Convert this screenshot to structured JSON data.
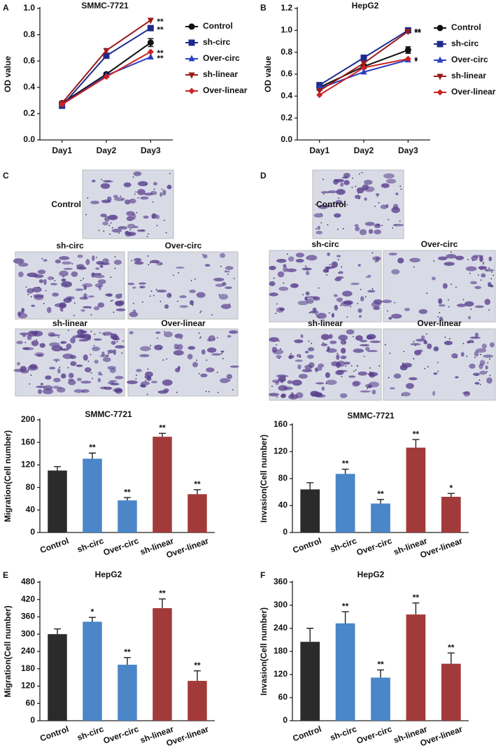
{
  "micrographs": [
    {
      "panel": "C",
      "labels": [
        "Control",
        "sh-circ",
        "Over-circ",
        "sh-linear",
        "Over-linear"
      ]
    },
    {
      "panel": "D",
      "labels": [
        "Control",
        "sh-circ",
        "Over-circ",
        "sh-linear",
        "Over-linear"
      ]
    }
  ],
  "chart_data": [
    {
      "type": "line",
      "panel": "A",
      "title": "SMMC-7721",
      "y_label": "OD value",
      "categories": [
        "Day1",
        "Day2",
        "Day3"
      ],
      "ylim": [
        0,
        1.0
      ],
      "yticks": [
        {
          "value": 0,
          "label": "0.0"
        },
        0.2,
        0.4,
        0.6,
        0.8,
        {
          "value": 1.0,
          "label": "1.0"
        }
      ],
      "legend": "right",
      "series": [
        {
          "name": "Control",
          "color": "#111111",
          "marker": "circle",
          "values": [
            0.28,
            0.5,
            0.74
          ],
          "errors": [
            0.01,
            0.01,
            0.03
          ]
        },
        {
          "name": "sh-circ",
          "color": "#1f2a8c",
          "marker": "square",
          "values": [
            0.26,
            0.64,
            0.85
          ],
          "significance": [
            null,
            null,
            "**"
          ]
        },
        {
          "name": "Over-circ",
          "color": "#2a3fc4",
          "marker": "triangle-up",
          "values": [
            0.27,
            0.49,
            0.63
          ],
          "significance": [
            null,
            null,
            "**"
          ]
        },
        {
          "name": "sh-linear",
          "color": "#9a1a1a",
          "marker": "triangle-down",
          "values": [
            0.28,
            0.68,
            0.91
          ],
          "significance": [
            null,
            null,
            "**"
          ]
        },
        {
          "name": "Over-linear",
          "color": "#cc2222",
          "marker": "diamond",
          "values": [
            0.27,
            0.48,
            0.67
          ],
          "significance": [
            null,
            null,
            "**"
          ]
        }
      ]
    },
    {
      "type": "line",
      "panel": "B",
      "title": "HepG2",
      "y_label": "OD value",
      "categories": [
        "Day1",
        "Day2",
        "Day3"
      ],
      "ylim": [
        0,
        1.2
      ],
      "yticks": [
        {
          "value": 0,
          "label": "0.0"
        },
        0.2,
        0.4,
        0.6,
        0.8,
        {
          "value": 1.0,
          "label": "1.0"
        },
        1.2
      ],
      "legend": "right",
      "series": [
        {
          "name": "Control",
          "color": "#111111",
          "marker": "circle",
          "values": [
            0.48,
            0.67,
            0.82
          ],
          "errors": [
            0.02,
            0.02,
            0.03
          ]
        },
        {
          "name": "sh-circ",
          "color": "#1f2a8c",
          "marker": "square",
          "values": [
            0.5,
            0.75,
            1.0
          ],
          "significance": [
            null,
            null,
            "**"
          ]
        },
        {
          "name": "Over-circ",
          "color": "#2a3fc4",
          "marker": "triangle-up",
          "values": [
            0.47,
            0.62,
            0.73
          ],
          "significance": [
            null,
            null,
            "*"
          ]
        },
        {
          "name": "sh-linear",
          "color": "#9a1a1a",
          "marker": "triangle-down",
          "values": [
            0.45,
            0.7,
            0.99
          ],
          "significance": [
            null,
            null,
            "**"
          ]
        },
        {
          "name": "Over-linear",
          "color": "#cc2222",
          "marker": "diamond",
          "values": [
            0.41,
            0.66,
            0.74
          ],
          "significance": [
            null,
            null,
            "*"
          ]
        }
      ]
    },
    {
      "type": "bar",
      "title": "SMMC-7721",
      "y_label": "Migration(Cell number)",
      "categories": [
        "Control",
        "sh-circ",
        "Over-circ",
        "sh-linear",
        "Over-linear"
      ],
      "values": [
        110,
        131,
        57,
        170,
        68
      ],
      "errors": [
        7,
        10,
        5,
        6,
        8
      ],
      "significance": [
        null,
        "**",
        "**",
        "**",
        "**"
      ],
      "colors": [
        "#2b2b2b",
        "#4a86c8",
        "#4a86c8",
        "#a33a3a",
        "#a33a3a"
      ],
      "ylim": [
        0,
        200
      ],
      "yticks": [
        0,
        40,
        80,
        120,
        160,
        200
      ]
    },
    {
      "type": "bar",
      "title": "SMMC-7721",
      "y_label": "Invasion(Cell number)",
      "categories": [
        "Control",
        "sh-circ",
        "Over-circ",
        "sh-linear",
        "Over-linear"
      ],
      "values": [
        64,
        87,
        43,
        126,
        53
      ],
      "errors": [
        10,
        7,
        6,
        12,
        5
      ],
      "significance": [
        null,
        "**",
        "**",
        "**",
        "*"
      ],
      "colors": [
        "#2b2b2b",
        "#4a86c8",
        "#4a86c8",
        "#a33a3a",
        "#a33a3a"
      ],
      "ylim": [
        0,
        160
      ],
      "yticks": [
        0,
        40,
        80,
        120,
        160
      ]
    },
    {
      "type": "bar",
      "panel": "E",
      "title": "HepG2",
      "y_label": "Migration(Cell number)",
      "categories": [
        "Control",
        "sh-circ",
        "Over-circ",
        "sh-linear",
        "Over-linear"
      ],
      "values": [
        300,
        343,
        194,
        390,
        138
      ],
      "errors": [
        18,
        15,
        25,
        32,
        35
      ],
      "significance": [
        null,
        "*",
        "**",
        "**",
        "**"
      ],
      "colors": [
        "#2b2b2b",
        "#4a86c8",
        "#4a86c8",
        "#a33a3a",
        "#a33a3a"
      ],
      "ylim": [
        0,
        480
      ],
      "yticks": [
        0,
        60,
        120,
        180,
        240,
        300,
        360,
        420,
        480
      ]
    },
    {
      "type": "bar",
      "panel": "F",
      "title": "HepG2",
      "y_label": "Invasion(Cell number)",
      "categories": [
        "Control",
        "sh-circ",
        "Over-circ",
        "sh-linear",
        "Over-linear"
      ],
      "values": [
        205,
        253,
        112,
        276,
        148
      ],
      "errors": [
        35,
        30,
        20,
        30,
        28
      ],
      "significance": [
        null,
        "**",
        "**",
        "**",
        "**"
      ],
      "colors": [
        "#2b2b2b",
        "#4a86c8",
        "#4a86c8",
        "#a33a3a",
        "#a33a3a"
      ],
      "ylim": [
        0,
        360
      ],
      "yticks": [
        0,
        60,
        120,
        180,
        240,
        300,
        360
      ]
    }
  ]
}
